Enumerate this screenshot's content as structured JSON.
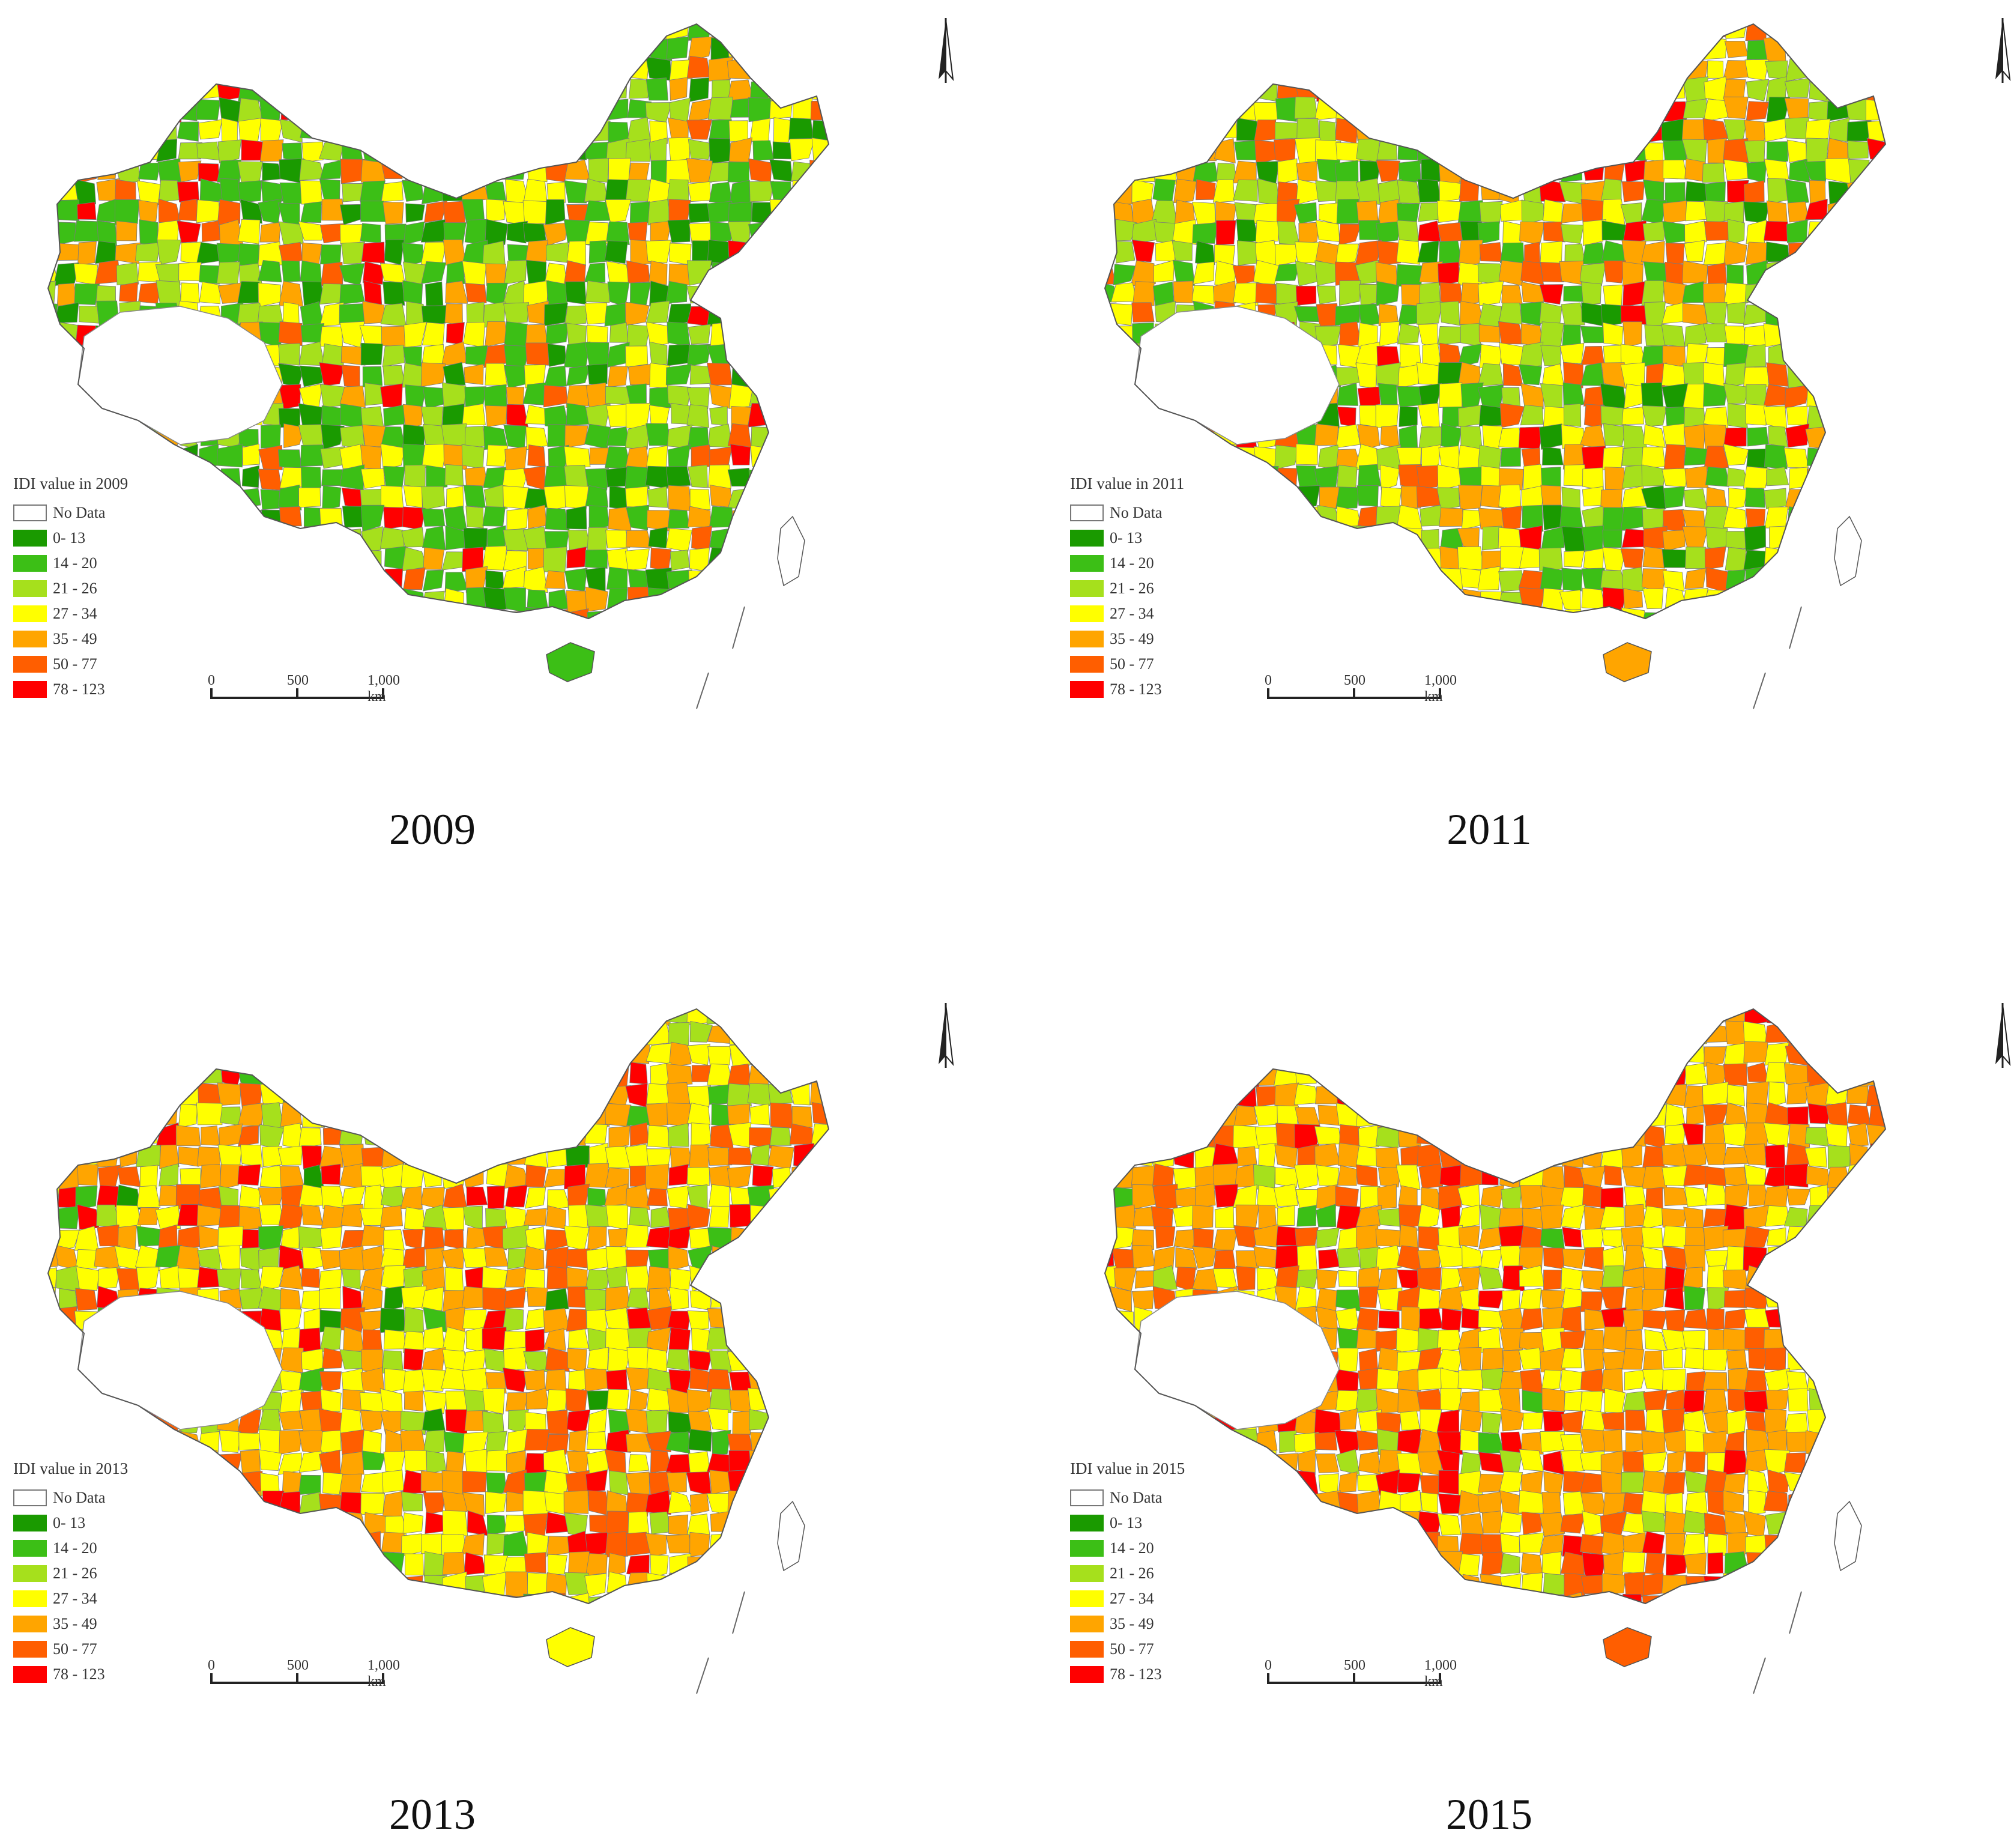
{
  "legend": {
    "items": [
      {
        "label": "No Data",
        "color": "#ffffff"
      },
      {
        "label": "0- 13",
        "color": "#1a9a00"
      },
      {
        "label": "14 - 20",
        "color": "#3cbf16"
      },
      {
        "label": "21 - 26",
        "color": "#a6e01c"
      },
      {
        "label": "27 - 34",
        "color": "#ffff00"
      },
      {
        "label": "35 - 49",
        "color": "#ffa500"
      },
      {
        "label": "50 - 77",
        "color": "#ff5e00"
      },
      {
        "label": "78 - 123",
        "color": "#ff0000"
      }
    ]
  },
  "scale": {
    "labels": [
      "0",
      "500",
      "1,000 km"
    ]
  },
  "panels": [
    {
      "year": "2009",
      "legend_title": "IDI value in 2009"
    },
    {
      "year": "2011",
      "legend_title": "IDI value in 2011"
    },
    {
      "year": "2013",
      "legend_title": "IDI value in 2013"
    },
    {
      "year": "2015",
      "legend_title": "IDI value in 2015"
    }
  ]
}
